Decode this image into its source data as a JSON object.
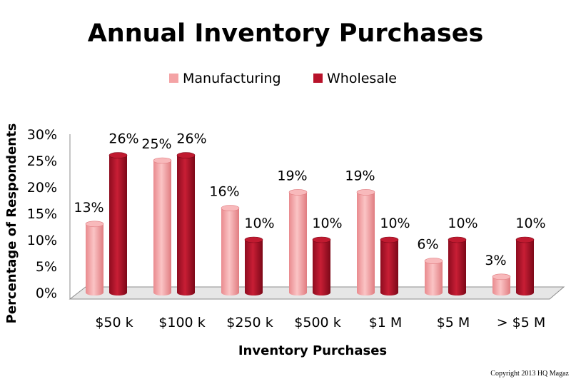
{
  "chart_data": {
    "type": "bar",
    "title": "Annual Inventory Purchases",
    "xlabel": "Inventory Purchases",
    "ylabel": "Percentage of Respondents",
    "categories": [
      "$50 k",
      "$100 k",
      "$250 k",
      "$500 k",
      "$1 M",
      "$5 M",
      "> $5 M"
    ],
    "series": [
      {
        "name": "Manufacturing",
        "values": [
          13,
          25,
          16,
          19,
          19,
          6,
          3
        ],
        "labels": [
          "13%",
          "25%",
          "16%",
          "19%",
          "19%",
          "6%",
          "3%"
        ],
        "color": "#f4a3a5"
      },
      {
        "name": "Wholesale",
        "values": [
          26,
          26,
          10,
          10,
          10,
          10,
          10
        ],
        "labels": [
          "26%",
          "26%",
          "10%",
          "10%",
          "10%",
          "10%",
          "10%"
        ],
        "color": "#b8122a"
      }
    ],
    "ylim": [
      0,
      30
    ],
    "yticks": [
      "0%",
      "5%",
      "10%",
      "15%",
      "20%",
      "25%",
      "30%"
    ],
    "grid": false,
    "legend_position": "top",
    "style": "3d-cylinder"
  },
  "copyright": "Copyright 2013 HQ Magaz"
}
